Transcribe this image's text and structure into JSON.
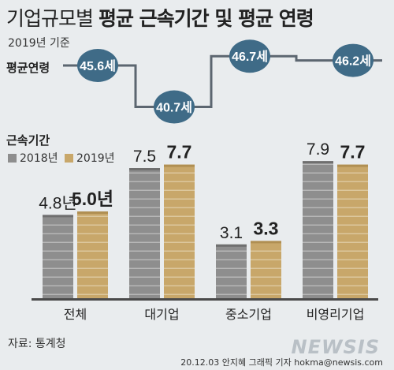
{
  "title_light": "기업규모별",
  "title_bold": "평균 근속기간 및 평균 연령",
  "subtitle": "2019년 기준",
  "age_label": "평균연령",
  "tenure_label": "근속기간",
  "source": "자료: 통계청",
  "credit": "20.12.03 안지혜 그래픽 기자 hokma@newsis.com",
  "logo": "NEWSIS",
  "colors": {
    "y2018": "#8e8e8e",
    "y2019": "#c8a76a",
    "age_circle": "#3f6b87",
    "line": "#5c6670",
    "background": "#e9ecee"
  },
  "chart_data": [
    {
      "type": "line",
      "title": "평균연령",
      "categories": [
        "전체",
        "대기업",
        "중소기업",
        "비영리기업"
      ],
      "values": [
        45.6,
        40.7,
        46.7,
        46.2
      ],
      "labels": [
        "45.6세",
        "40.7세",
        "46.7세",
        "46.2세"
      ]
    },
    {
      "type": "bar",
      "title": "근속기간",
      "categories": [
        "전체",
        "대기업",
        "중소기업",
        "비영리기업"
      ],
      "series": [
        {
          "name": "2018년",
          "values": [
            4.8,
            7.5,
            3.1,
            7.9
          ],
          "labels": [
            "4.8년",
            "7.5",
            "3.1",
            "7.9"
          ]
        },
        {
          "name": "2019년",
          "values": [
            5.0,
            7.7,
            3.3,
            7.7
          ],
          "labels": [
            "5.0년",
            "7.7",
            "3.3",
            "7.7"
          ]
        }
      ]
    }
  ]
}
